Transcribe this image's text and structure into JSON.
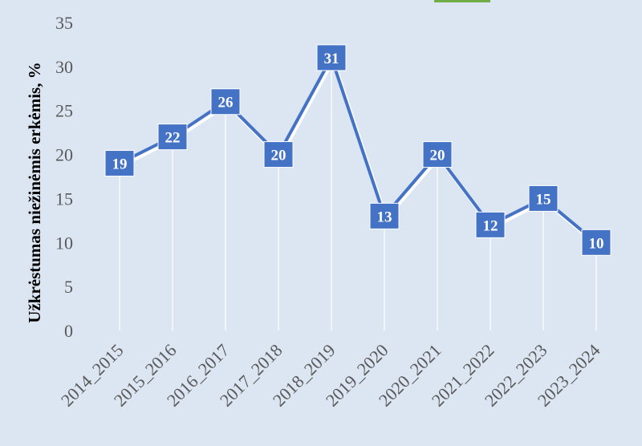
{
  "chart_data": {
    "type": "line",
    "categories": [
      "2014_2015",
      "2015_2016",
      "2016_2017",
      "2017_2018",
      "2018_2019",
      "2019_2020",
      "2020_2021",
      "2021_2022",
      "2022_2023",
      "2023_2024"
    ],
    "values": [
      19,
      22,
      26,
      20,
      31,
      13,
      20,
      12,
      15,
      10
    ],
    "data_labels": [
      "19",
      "22",
      "26",
      "20",
      "31",
      "13",
      "20",
      "12",
      "15",
      "10"
    ],
    "ylabel": "Užkrėstumas niežinėmis erkėmis, %",
    "yticks": [
      "0",
      "5",
      "10",
      "15",
      "20",
      "25",
      "30",
      "35"
    ],
    "ylim": [
      0,
      35
    ],
    "grid": false,
    "drop_lines": true,
    "colors": {
      "background": "#dce6f2",
      "line": "#4472c4",
      "label_box": "#4472c4",
      "label_text": "#ffffff",
      "line_shadow": "#ffffff",
      "drop_line": "#ffffff",
      "tick_text": "#595959",
      "accent_top": "#70ad47"
    }
  }
}
